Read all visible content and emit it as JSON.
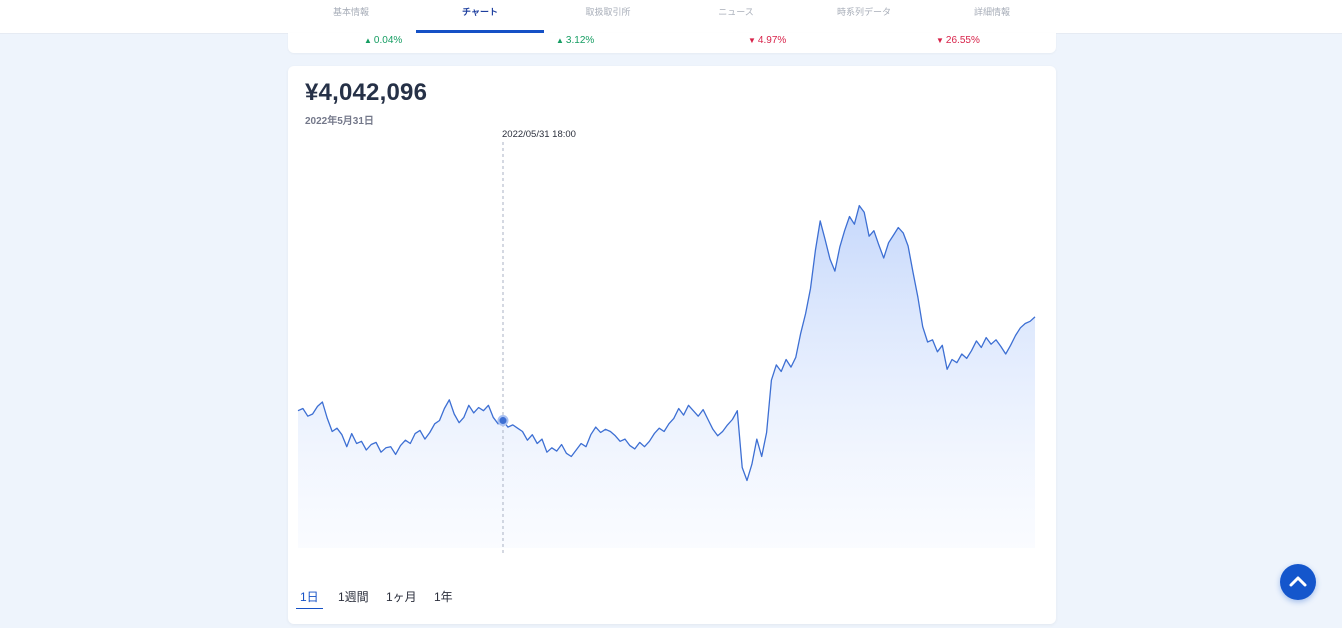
{
  "nav": {
    "tabs": [
      {
        "label": "基本情報",
        "active": false
      },
      {
        "label": "チャート",
        "active": true
      },
      {
        "label": "取扱取引所",
        "active": false
      },
      {
        "label": "ニュース",
        "active": false
      },
      {
        "label": "時系列データ",
        "active": false
      },
      {
        "label": "詳細情報",
        "active": false
      }
    ]
  },
  "changes": [
    {
      "value": "0.04%",
      "direction": "up",
      "arrow": "▲"
    },
    {
      "value": "3.12%",
      "direction": "up",
      "arrow": "▲"
    },
    {
      "value": "4.97%",
      "direction": "down",
      "arrow": "▼"
    },
    {
      "value": "26.55%",
      "direction": "down",
      "arrow": "▼"
    }
  ],
  "colors": {
    "accent": "#1551c6",
    "up": "#159d62",
    "down": "#d8234a",
    "line": "#3d6fd3",
    "area": "#c8d9fb"
  },
  "price": {
    "value": "¥4,042,096",
    "date": "2022年5月31日"
  },
  "tooltip": {
    "label": "2022/05/31 18:00"
  },
  "periods": [
    {
      "label": "1日",
      "active": true
    },
    {
      "label": "1週間",
      "active": false
    },
    {
      "label": "1ヶ月",
      "active": false
    },
    {
      "label": "1年",
      "active": false
    }
  ],
  "scroll_top_icon": "chevron-up-icon",
  "chart_data": {
    "type": "area",
    "cursor_index": 42,
    "values": [
      12.4,
      12.6,
      11.9,
      12.1,
      12.8,
      13.2,
      11.7,
      10.5,
      10.8,
      10.2,
      9.1,
      10.3,
      9.4,
      9.6,
      8.8,
      9.3,
      9.5,
      8.6,
      9.0,
      9.1,
      8.4,
      9.2,
      9.7,
      9.4,
      10.3,
      10.6,
      9.8,
      10.4,
      11.2,
      11.5,
      12.6,
      13.4,
      12.1,
      11.3,
      11.8,
      12.9,
      12.2,
      12.7,
      12.4,
      12.9,
      11.8,
      11.2,
      11.5,
      10.9,
      11.1,
      10.8,
      10.5,
      9.7,
      10.2,
      9.4,
      9.8,
      8.6,
      9.0,
      8.7,
      9.3,
      8.5,
      8.2,
      8.8,
      9.4,
      9.1,
      10.2,
      10.9,
      10.4,
      10.7,
      10.5,
      10.1,
      9.6,
      9.8,
      9.2,
      8.9,
      9.5,
      9.1,
      9.6,
      10.3,
      10.8,
      10.5,
      11.2,
      11.7,
      12.6,
      12.0,
      12.9,
      12.4,
      11.9,
      12.5,
      11.6,
      10.7,
      10.1,
      10.5,
      11.1,
      11.6,
      12.4,
      7.2,
      6.0,
      7.5,
      9.8,
      8.2,
      10.4,
      15.2,
      16.6,
      16.0,
      17.1,
      16.4,
      17.3,
      19.5,
      21.3,
      23.6,
      27.1,
      29.8,
      28.1,
      26.3,
      25.2,
      27.4,
      28.9,
      30.2,
      29.5,
      31.2,
      30.6,
      28.4,
      28.9,
      27.6,
      26.4,
      27.8,
      28.5,
      29.2,
      28.7,
      27.5,
      25.1,
      22.8,
      20.1,
      18.7,
      18.9,
      17.8,
      18.4,
      16.2,
      17.1,
      16.8,
      17.6,
      17.2,
      17.9,
      18.8,
      18.2,
      19.1,
      18.5,
      18.9,
      18.3,
      17.6,
      18.4,
      19.3,
      20.0,
      20.4,
      20.6,
      21.0
    ]
  }
}
